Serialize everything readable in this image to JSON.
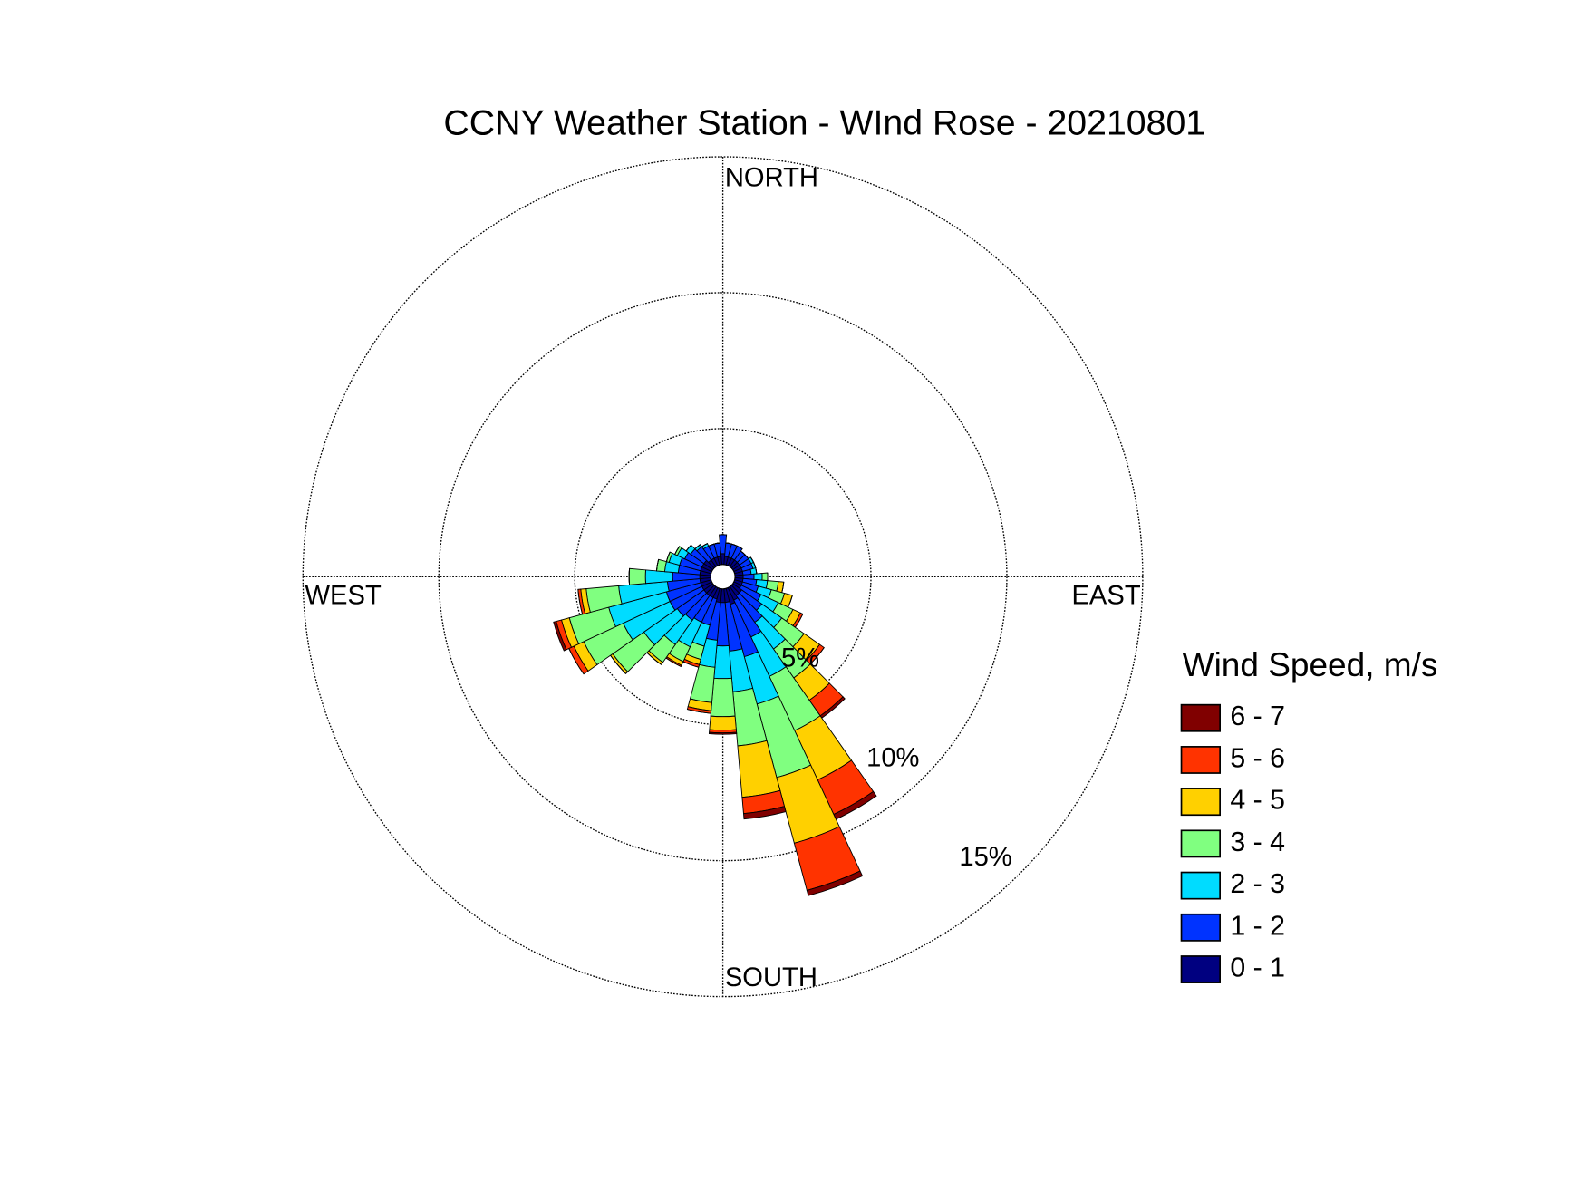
{
  "chart_data": {
    "type": "windrose",
    "title": "CCNY Weather Station - WInd Rose - 20210801",
    "compass_labels": {
      "north": "NORTH",
      "east": "EAST",
      "south": "SOUTH",
      "west": "WEST"
    },
    "legend_title": "Wind Speed, m/s",
    "x": [
      0,
      10,
      20,
      30,
      40,
      50,
      60,
      70,
      80,
      90,
      100,
      110,
      120,
      130,
      140,
      150,
      160,
      170,
      180,
      190,
      200,
      210,
      220,
      230,
      240,
      250,
      260,
      270,
      280,
      290,
      300,
      310,
      320,
      330,
      340,
      350
    ],
    "rlim": [
      0,
      15
    ],
    "rticks": [
      {
        "value": 5,
        "label": "5%"
      },
      {
        "value": 10,
        "label": "10%"
      },
      {
        "value": 15,
        "label": "15%"
      }
    ],
    "series": [
      {
        "name": "0 - 1",
        "color": "#000080",
        "values": [
          0.4,
          0.3,
          0.3,
          0.3,
          0.3,
          0.3,
          0.3,
          0.3,
          0.3,
          0.3,
          0.3,
          0.3,
          0.3,
          0.4,
          0.4,
          0.5,
          0.6,
          0.5,
          0.5,
          0.5,
          0.4,
          0.4,
          0.4,
          0.4,
          0.4,
          0.4,
          0.4,
          0.4,
          0.4,
          0.4,
          0.4,
          0.4,
          0.3,
          0.3,
          0.3,
          0.3
        ]
      },
      {
        "name": "1 - 2",
        "color": "#0033ff",
        "values": [
          0.7,
          0.5,
          0.5,
          0.5,
          0.4,
          0.4,
          0.4,
          0.4,
          0.3,
          0.4,
          0.5,
          0.6,
          0.8,
          0.9,
          1.2,
          1.5,
          2.0,
          1.8,
          1.6,
          1.4,
          1.0,
          1.0,
          1.1,
          1.2,
          1.3,
          1.3,
          1.2,
          1.0,
          0.8,
          0.8,
          0.7,
          0.6,
          0.6,
          0.5,
          0.5,
          0.5
        ]
      },
      {
        "name": "2 - 3",
        "color": "#00dcff",
        "values": [
          0,
          0,
          0,
          0,
          0,
          0,
          0.1,
          0.1,
          0.2,
          0.3,
          0.4,
          0.5,
          0.7,
          0.9,
          1.2,
          1.6,
          1.8,
          1.5,
          1.2,
          1.0,
          0.8,
          1.0,
          1.1,
          1.5,
          1.9,
          2.2,
          1.8,
          1.0,
          0.5,
          0.4,
          0.3,
          0.2,
          0.1,
          0.1,
          0,
          0
        ]
      },
      {
        "name": "3 - 4",
        "color": "#80ff80",
        "values": [
          0,
          0,
          0,
          0,
          0,
          0,
          0,
          0,
          0,
          0.2,
          0.4,
          0.5,
          0.6,
          1.0,
          1.3,
          2.2,
          2.8,
          2.0,
          1.4,
          1.3,
          0.5,
          0.6,
          0.8,
          1.4,
          1.6,
          1.5,
          1.2,
          0.6,
          0.3,
          0.1,
          0.1,
          0,
          0,
          0,
          0,
          0
        ]
      },
      {
        "name": "4 - 5",
        "color": "#ffd000",
        "values": [
          0,
          0,
          0,
          0,
          0,
          0,
          0,
          0,
          0,
          0,
          0.2,
          0.3,
          0.3,
          0.7,
          1.0,
          2.0,
          2.5,
          1.9,
          0.5,
          0.3,
          0.2,
          0.15,
          0.1,
          0.1,
          0.4,
          0.3,
          0.2,
          0,
          0,
          0,
          0,
          0,
          0,
          0,
          0,
          0
        ]
      },
      {
        "name": "5 - 6",
        "color": "#ff3300",
        "values": [
          0,
          0,
          0,
          0,
          0,
          0,
          0,
          0,
          0,
          0,
          0,
          0,
          0.1,
          0.2,
          0.7,
          1.4,
          1.8,
          0.6,
          0.1,
          0.1,
          0.1,
          0.05,
          0,
          0,
          0.2,
          0.2,
          0.1,
          0,
          0,
          0,
          0,
          0,
          0,
          0,
          0,
          0
        ]
      },
      {
        "name": "6 - 7",
        "color": "#800000",
        "values": [
          0,
          0,
          0,
          0,
          0,
          0,
          0,
          0,
          0,
          0,
          0,
          0,
          0,
          0,
          0.1,
          0.2,
          0.2,
          0.2,
          0.05,
          0,
          0,
          0,
          0,
          0,
          0,
          0.1,
          0,
          0,
          0,
          0,
          0,
          0,
          0,
          0,
          0,
          0
        ]
      }
    ]
  }
}
